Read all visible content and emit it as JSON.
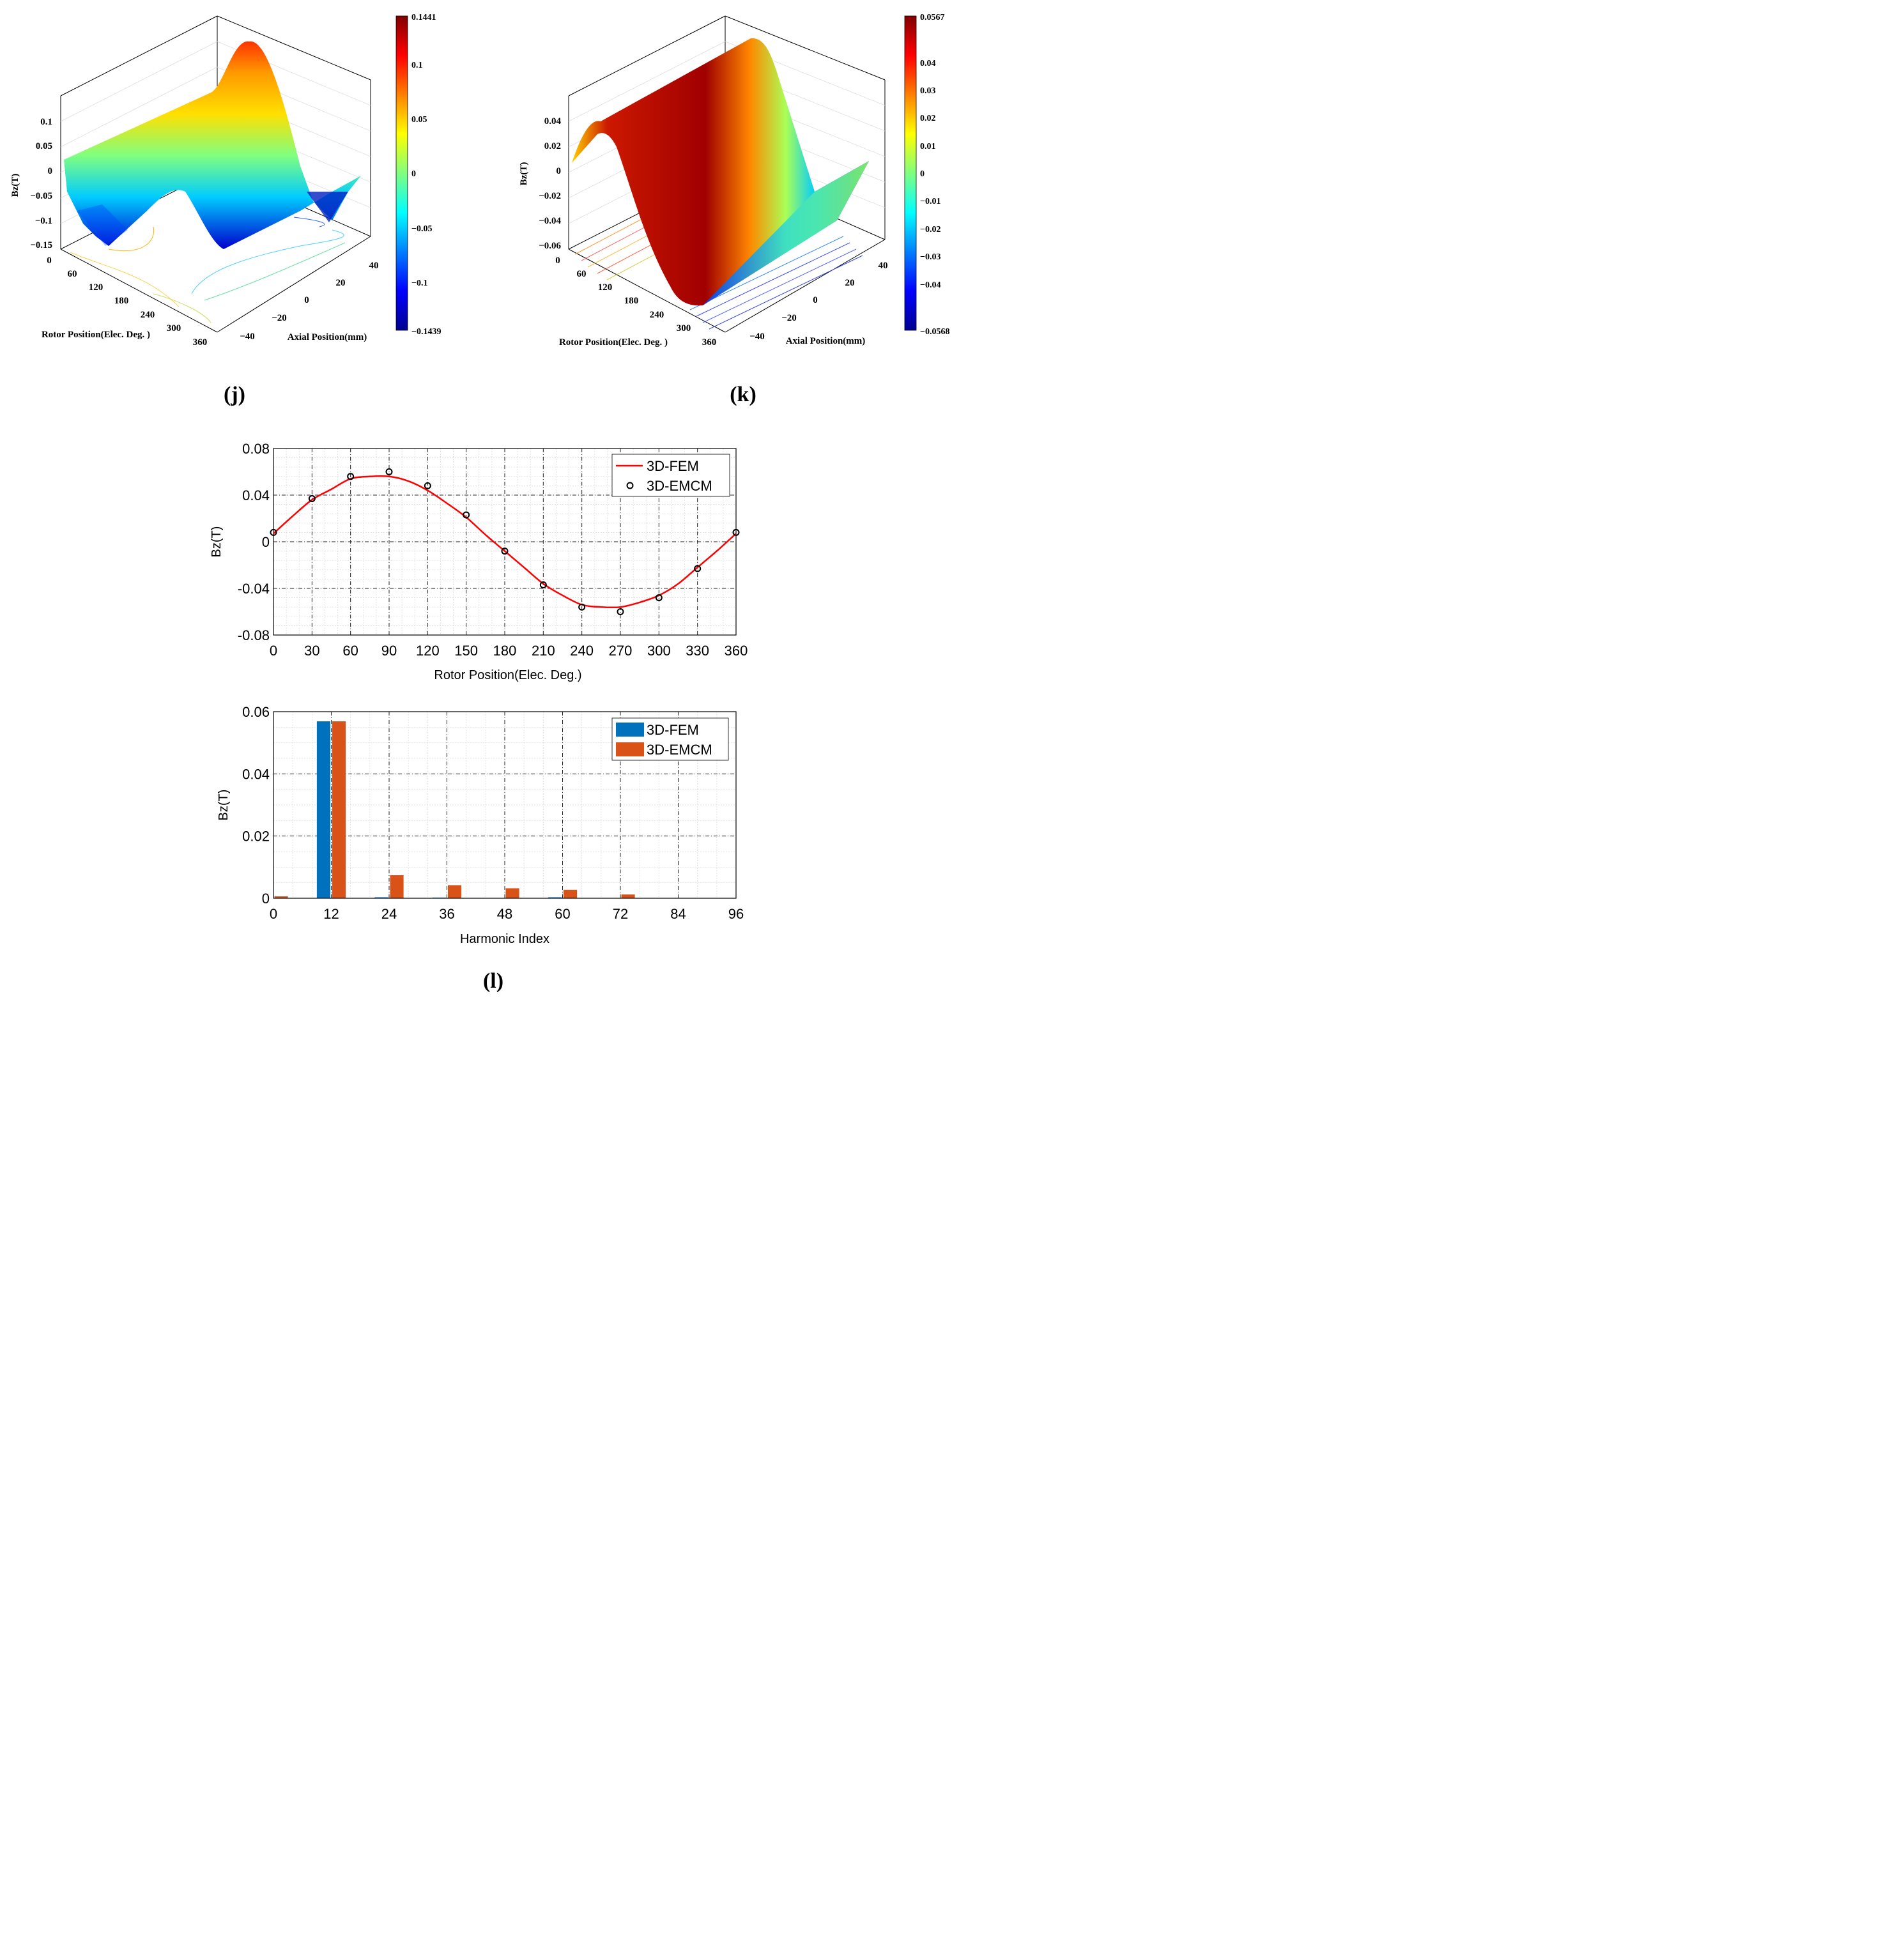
{
  "panels": {
    "j": {
      "label": "(j)",
      "zlabel": "Bz(T)",
      "xlabel": "Rotor Position(Elec. Deg. )",
      "ylabel": "Axial Position(mm)",
      "z_ticks": [
        "0.1",
        "0.05",
        "0",
        "−0.05",
        "−0.1",
        "−0.15"
      ],
      "x_ticks": [
        "0",
        "60",
        "120",
        "180",
        "240",
        "300",
        "360"
      ],
      "y_ticks": [
        "−40",
        "−20",
        "0",
        "20",
        "40"
      ],
      "colorbar": {
        "max": "0.1441",
        "min": "−0.1439",
        "ticks": [
          "0.1",
          "0.05",
          "0",
          "−0.05",
          "−0.1"
        ]
      }
    },
    "k": {
      "label": "(k)",
      "zlabel": "Bz(T)",
      "xlabel": "Rotor Position(Elec. Deg. )",
      "ylabel": "Axial Position(mm)",
      "z_ticks": [
        "0.04",
        "0.02",
        "0",
        "−0.02",
        "−0.04",
        "−0.06"
      ],
      "x_ticks": [
        "0",
        "60",
        "120",
        "180",
        "240",
        "300",
        "360"
      ],
      "y_ticks": [
        "−40",
        "−20",
        "0",
        "20",
        "40"
      ],
      "colorbar": {
        "max": "0.0567",
        "min": "−0.0568",
        "ticks": [
          "0.04",
          "0.03",
          "0.02",
          "0.01",
          "0",
          "−0.01",
          "−0.02",
          "−0.03",
          "−0.04"
        ]
      }
    },
    "l": {
      "label": "(l)"
    }
  },
  "colors": {
    "fem_line": "#ff0000",
    "emcm_marker": "#000000",
    "fem_bar": "#0072bd",
    "emcm_bar": "#d95319"
  },
  "chart_data": [
    {
      "type": "surface",
      "panel": "j",
      "zlabel": "Bz(T)",
      "xlabel": "Rotor Position(Elec. Deg. )",
      "ylabel": "Axial Position(mm)",
      "xlim": [
        0,
        360
      ],
      "ylim": [
        -45,
        45
      ],
      "zlim": [
        -0.15,
        0.15
      ],
      "colorbar_range": [
        -0.1439,
        0.1441
      ]
    },
    {
      "type": "surface",
      "panel": "k",
      "zlabel": "Bz(T)",
      "xlabel": "Rotor Position(Elec. Deg. )",
      "ylabel": "Axial Position(mm)",
      "xlim": [
        0,
        360
      ],
      "ylim": [
        -45,
        45
      ],
      "zlim": [
        -0.06,
        0.06
      ],
      "colorbar_range": [
        -0.0568,
        0.0567
      ]
    },
    {
      "type": "line",
      "panel": "l-top",
      "xlabel": "Rotor Position(Elec. Deg.)",
      "ylabel": "Bz(T)",
      "xlim": [
        0,
        360
      ],
      "ylim": [
        -0.08,
        0.08
      ],
      "xticks": [
        "0",
        "30",
        "60",
        "90",
        "120",
        "150",
        "180",
        "210",
        "240",
        "270",
        "300",
        "330",
        "360"
      ],
      "yticks": [
        "0.08",
        "0.04",
        "0",
        "-0.04",
        "-0.08"
      ],
      "grid": true,
      "legend": "top-right",
      "series": [
        {
          "name": "3D-FEM",
          "style": "line",
          "x": [
            0,
            15,
            30,
            45,
            60,
            75,
            90,
            105,
            120,
            135,
            150,
            165,
            180,
            195,
            210,
            225,
            240,
            255,
            270,
            285,
            300,
            315,
            330,
            345,
            360
          ],
          "y": [
            0.007,
            0.022,
            0.036,
            0.045,
            0.054,
            0.056,
            0.056,
            0.052,
            0.044,
            0.033,
            0.021,
            0.006,
            -0.008,
            -0.022,
            -0.036,
            -0.046,
            -0.054,
            -0.056,
            -0.056,
            -0.052,
            -0.046,
            -0.036,
            -0.022,
            -0.008,
            0.007
          ]
        },
        {
          "name": "3D-EMCM",
          "style": "marker",
          "x": [
            0,
            30,
            60,
            90,
            120,
            150,
            180,
            210,
            240,
            270,
            300,
            330,
            360
          ],
          "y": [
            0.008,
            0.037,
            0.056,
            0.06,
            0.048,
            0.023,
            -0.008,
            -0.037,
            -0.056,
            -0.06,
            -0.048,
            -0.023,
            0.008
          ]
        }
      ]
    },
    {
      "type": "bar",
      "panel": "l-bottom",
      "xlabel": "Harmonic Index",
      "ylabel": "Bz(T)",
      "xlim": [
        0,
        96
      ],
      "ylim": [
        0,
        0.06
      ],
      "xticks": [
        "0",
        "12",
        "24",
        "36",
        "48",
        "60",
        "72",
        "84",
        "96"
      ],
      "yticks": [
        "0.06",
        "0.04",
        "0.02",
        "0"
      ],
      "grid": true,
      "legend": "top-right",
      "categories": [
        0,
        12,
        24,
        36,
        48,
        60,
        72
      ],
      "series": [
        {
          "name": "3D-FEM",
          "values": [
            0,
            0.0569,
            0.0003,
            0.0002,
            0,
            0.0003,
            0
          ]
        },
        {
          "name": "3D-EMCM",
          "values": [
            0.0006,
            0.0569,
            0.0074,
            0.0042,
            0.0032,
            0.0027,
            0.0012
          ]
        }
      ]
    }
  ]
}
